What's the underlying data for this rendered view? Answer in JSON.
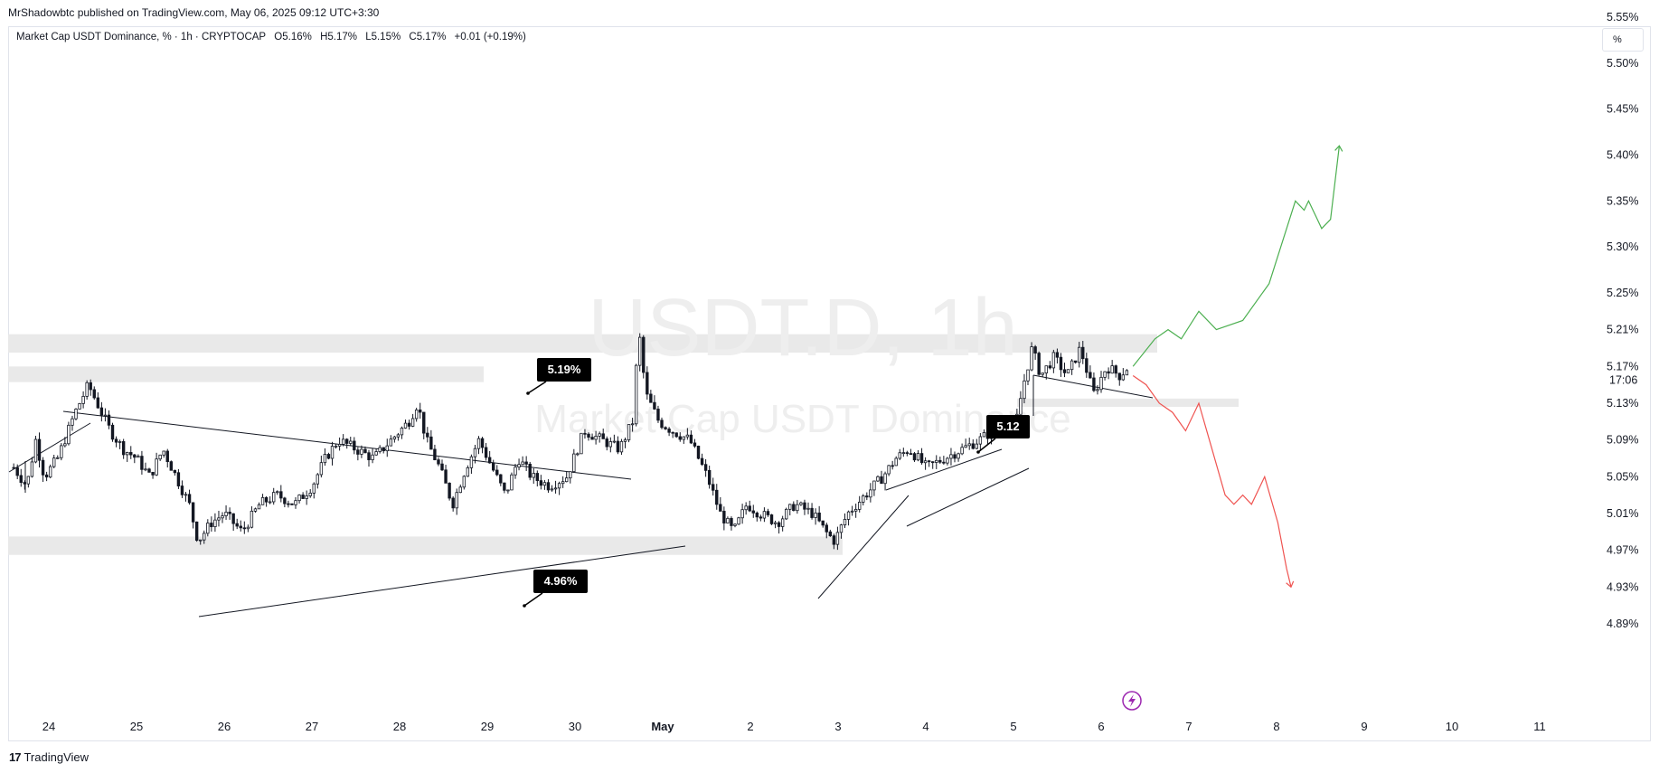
{
  "header": {
    "credit": "MrShadowbtc published on TradingView.com, May 06, 2025 09:12 UTC+3:30"
  },
  "legend": {
    "symbol": "Market Cap USDT Dominance, % · 1h · CRYPTOCAP",
    "open": "O5.16%",
    "high": "H5.17%",
    "low": "L5.15%",
    "close": "C5.17%",
    "change": "+0.01 (+0.19%)"
  },
  "unit_label": "%",
  "watermark": {
    "line1": "USDT.D, 1h",
    "line2": "Market Cap USDT Dominance"
  },
  "footer": {
    "brand": "TradingView"
  },
  "colors": {
    "candle": "#131722",
    "zone": "#e9e9e9",
    "bull_projection": "#4caf50",
    "bear_projection": "#ef5350",
    "callout_bg": "#000000",
    "lightning": "#9c27b0"
  },
  "chart_data": {
    "type": "candlestick",
    "y_axis": {
      "ticks": [
        4.89,
        4.93,
        4.97,
        5.01,
        5.05,
        5.09,
        5.13,
        5.17,
        5.21,
        5.25,
        5.3,
        5.35,
        5.4,
        5.45,
        5.5,
        5.55
      ],
      "tick_labels": [
        "4.89%",
        "4.93%",
        "4.97%",
        "5.01%",
        "5.05%",
        "5.09%",
        "5.13%",
        "5.17%",
        "5.21%",
        "5.25%",
        "5.30%",
        "5.35%",
        "5.40%",
        "5.45%",
        "5.50%",
        "5.55%"
      ],
      "current_price_label": "5.17%",
      "countdown_label": "17:06",
      "ylim": [
        4.86,
        5.57
      ]
    },
    "x_axis": {
      "tick_labels": [
        "24",
        "25",
        "26",
        "27",
        "28",
        "29",
        "30",
        "May",
        "2",
        "3",
        "4",
        "5",
        "6",
        "7",
        "8",
        "9",
        "10",
        "11"
      ]
    },
    "price_path": [
      [
        23.6,
        5.06
      ],
      [
        23.75,
        5.04
      ],
      [
        23.85,
        5.09
      ],
      [
        23.95,
        5.05
      ],
      [
        24.1,
        5.07
      ],
      [
        24.3,
        5.12
      ],
      [
        24.45,
        5.15
      ],
      [
        24.55,
        5.13
      ],
      [
        24.7,
        5.1
      ],
      [
        24.85,
        5.08
      ],
      [
        25.0,
        5.07
      ],
      [
        25.15,
        5.05
      ],
      [
        25.3,
        5.08
      ],
      [
        25.45,
        5.05
      ],
      [
        25.6,
        5.02
      ],
      [
        25.7,
        4.98
      ],
      [
        25.85,
        5.0
      ],
      [
        26.0,
        5.01
      ],
      [
        26.2,
        4.99
      ],
      [
        26.4,
        5.02
      ],
      [
        26.6,
        5.03
      ],
      [
        26.8,
        5.02
      ],
      [
        27.0,
        5.04
      ],
      [
        27.15,
        5.07
      ],
      [
        27.3,
        5.09
      ],
      [
        27.5,
        5.08
      ],
      [
        27.7,
        5.07
      ],
      [
        27.9,
        5.09
      ],
      [
        28.1,
        5.11
      ],
      [
        28.2,
        5.13
      ],
      [
        28.3,
        5.09
      ],
      [
        28.45,
        5.06
      ],
      [
        28.6,
        5.02
      ],
      [
        28.75,
        5.06
      ],
      [
        28.9,
        5.09
      ],
      [
        29.05,
        5.06
      ],
      [
        29.2,
        5.03
      ],
      [
        29.35,
        5.07
      ],
      [
        29.5,
        5.05
      ],
      [
        29.7,
        5.04
      ],
      [
        29.9,
        5.05
      ],
      [
        30.1,
        5.1
      ],
      [
        30.3,
        5.09
      ],
      [
        30.5,
        5.08
      ],
      [
        30.65,
        5.11
      ],
      [
        30.72,
        5.21
      ],
      [
        30.8,
        5.14
      ],
      [
        30.95,
        5.11
      ],
      [
        31.1,
        5.1
      ],
      [
        31.3,
        5.09
      ],
      [
        31.5,
        5.05
      ],
      [
        31.65,
        5.01
      ],
      [
        31.8,
        4.99
      ],
      [
        31.95,
        5.02
      ],
      [
        32.1,
        5.01
      ],
      [
        32.3,
        5.0
      ],
      [
        32.5,
        5.02
      ],
      [
        32.7,
        5.01
      ],
      [
        32.85,
        4.99
      ],
      [
        32.95,
        4.98
      ],
      [
        33.1,
        5.01
      ],
      [
        33.3,
        5.03
      ],
      [
        33.5,
        5.05
      ],
      [
        33.65,
        5.07
      ],
      [
        33.8,
        5.08
      ],
      [
        34.0,
        5.06
      ],
      [
        34.2,
        5.07
      ],
      [
        34.4,
        5.08
      ],
      [
        34.6,
        5.09
      ],
      [
        34.75,
        5.1
      ],
      [
        34.9,
        5.11
      ],
      [
        35.0,
        5.1
      ],
      [
        35.1,
        5.15
      ],
      [
        35.2,
        5.19
      ],
      [
        35.3,
        5.16
      ],
      [
        35.45,
        5.18
      ],
      [
        35.6,
        5.16
      ],
      [
        35.75,
        5.19
      ],
      [
        35.9,
        5.14
      ],
      [
        36.05,
        5.17
      ],
      [
        36.2,
        5.16
      ],
      [
        36.3,
        5.17
      ]
    ],
    "annotations": [
      {
        "type": "callout",
        "text": "5.19%"
      },
      {
        "type": "callout",
        "text": "4.96%"
      },
      {
        "type": "callout",
        "text": "5.12"
      }
    ],
    "zones": [
      {
        "from": 5.185,
        "to": 5.205
      },
      {
        "from": 5.153,
        "to": 5.17
      },
      {
        "from": 4.965,
        "to": 4.985
      },
      {
        "from": 5.126,
        "to": 5.135
      }
    ],
    "bull_projection": [
      [
        36.35,
        5.17
      ],
      [
        36.6,
        5.2
      ],
      [
        36.75,
        5.21
      ],
      [
        36.9,
        5.2
      ],
      [
        37.1,
        5.23
      ],
      [
        37.3,
        5.21
      ],
      [
        37.6,
        5.22
      ],
      [
        37.9,
        5.26
      ],
      [
        38.1,
        5.32
      ],
      [
        38.2,
        5.35
      ],
      [
        38.3,
        5.34
      ],
      [
        38.35,
        5.35
      ],
      [
        38.45,
        5.33
      ],
      [
        38.5,
        5.32
      ],
      [
        38.6,
        5.33
      ],
      [
        38.7,
        5.41
      ]
    ],
    "bear_projection": [
      [
        36.35,
        5.16
      ],
      [
        36.5,
        5.15
      ],
      [
        36.65,
        5.13
      ],
      [
        36.8,
        5.12
      ],
      [
        36.95,
        5.1
      ],
      [
        37.1,
        5.13
      ],
      [
        37.25,
        5.08
      ],
      [
        37.4,
        5.03
      ],
      [
        37.5,
        5.02
      ],
      [
        37.6,
        5.03
      ],
      [
        37.7,
        5.02
      ],
      [
        37.85,
        5.05
      ],
      [
        38.0,
        5.0
      ],
      [
        38.1,
        4.95
      ],
      [
        38.15,
        4.93
      ]
    ]
  }
}
